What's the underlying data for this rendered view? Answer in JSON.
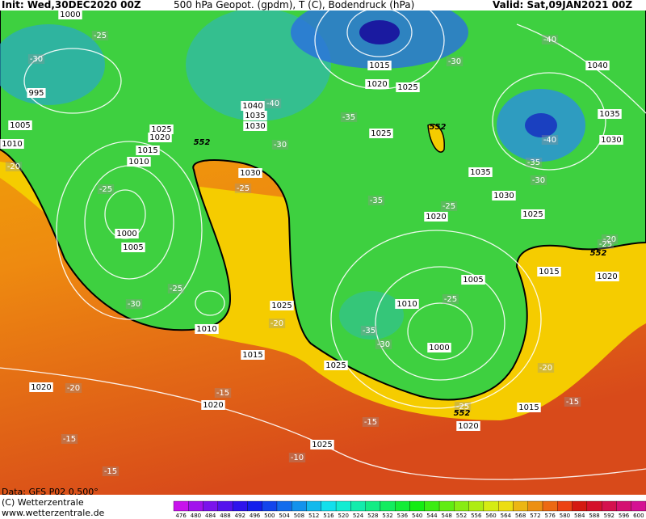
{
  "header": {
    "init": "Init: Wed,30DEC2020 00Z",
    "title": "500 hPa Geopot. (gpdm), T (C), Bodendruck (hPa)",
    "valid": "Valid: Sat,09JAN2021 00Z"
  },
  "footer": {
    "data": "Data: GFS P02 0.500°",
    "copyright": "(C) Wetterzentrale",
    "url": "www.wetterzentrale.de"
  },
  "colorbar": {
    "labels": [
      476,
      480,
      484,
      488,
      492,
      496,
      500,
      504,
      508,
      512,
      516,
      520,
      524,
      528,
      532,
      536,
      540,
      544,
      548,
      552,
      556,
      560,
      564,
      568,
      572,
      576,
      580,
      584,
      588,
      592,
      596,
      600
    ]
  },
  "map_labels": {
    "isobars": [
      "1000",
      "995",
      "1005",
      "1010",
      "1025",
      "1020",
      "1015",
      "1010",
      "1040",
      "1035",
      "1030",
      "1015",
      "1020",
      "1025",
      "1025",
      "1040",
      "1035",
      "1030",
      "1035",
      "1030",
      "1020",
      "1025",
      "1030",
      "1000",
      "1005",
      "1015",
      "1020",
      "1005",
      "1010",
      "1000",
      "1025",
      "1010",
      "1015",
      "1025",
      "1020",
      "1020",
      "1015",
      "1020",
      "1025"
    ],
    "temperatures": [
      "-25",
      "-30",
      "-40",
      "-35",
      "-30",
      "-40",
      "-30",
      "-40",
      "-35",
      "-30",
      "-20",
      "-25",
      "-25",
      "-35",
      "-25",
      "-20",
      "-25",
      "-25",
      "-30",
      "-20",
      "-35",
      "-30",
      "-25",
      "-20",
      "-20",
      "-15",
      "-15",
      "-25",
      "-15",
      "-15",
      "-10",
      "-15"
    ],
    "height_552": [
      "552",
      "552",
      "552",
      "552"
    ]
  }
}
